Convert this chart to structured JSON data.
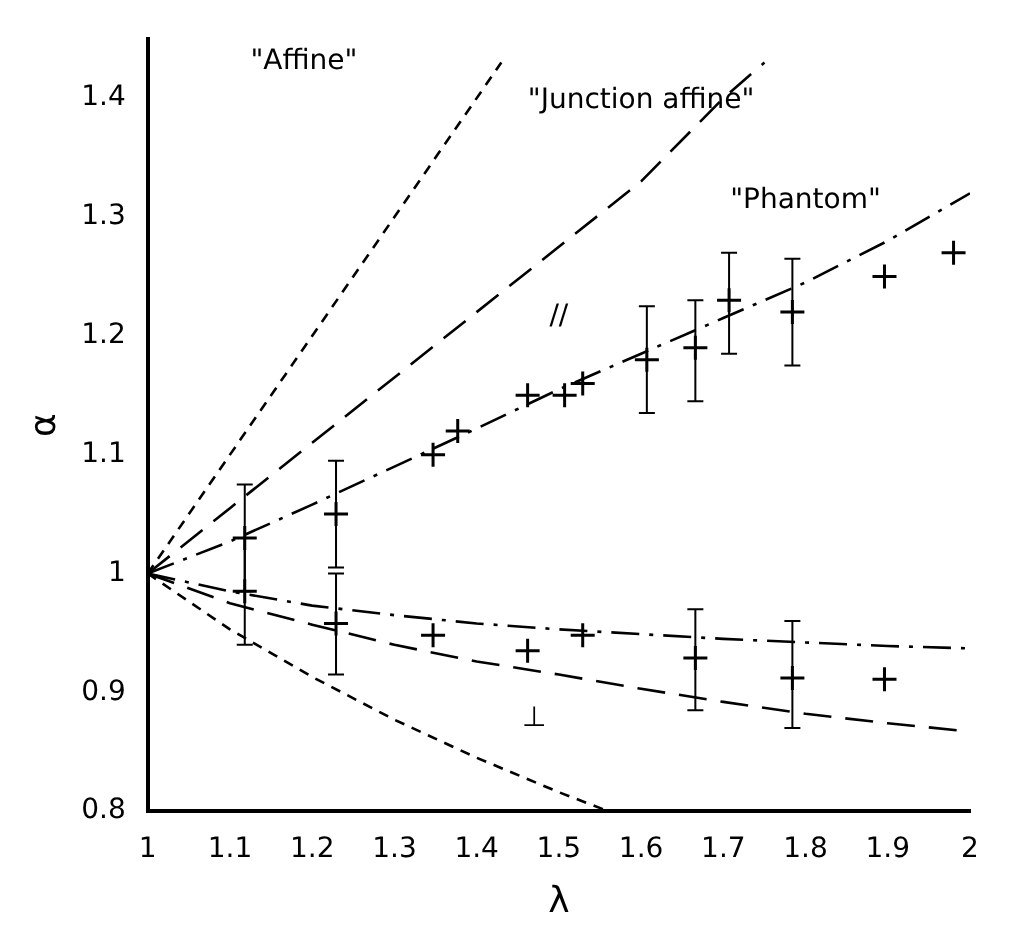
{
  "chart_data": {
    "type": "line",
    "xlabel": "λ",
    "ylabel": "α",
    "xlim": [
      1,
      2
    ],
    "ylim": [
      0.8,
      1.45
    ],
    "xticks": [
      1,
      1.1,
      1.2,
      1.3,
      1.4,
      1.5,
      1.6,
      1.7,
      1.8,
      1.9,
      2
    ],
    "yticks": [
      0.8,
      0.9,
      1,
      1.1,
      1.2,
      1.3,
      1.4
    ],
    "grid": false,
    "legend": false,
    "marker": "none",
    "series": [
      {
        "color": "#000000",
        "line_style": "dotted",
        "x": [
          1,
          1.43
        ],
        "values": [
          1,
          1.43
        ]
      },
      {
        "color": "#000000",
        "line_style": "dotted",
        "x": [
          1,
          1.1,
          1.2,
          1.3,
          1.4,
          1.5,
          1.56
        ],
        "values": [
          1,
          0.953,
          0.913,
          0.877,
          0.845,
          0.816,
          0.8
        ]
      },
      {
        "color": "#000000",
        "line_style": "dashed",
        "x": [
          1,
          1.1,
          1.2,
          1.3,
          1.4,
          1.5,
          1.6,
          1.7,
          1.75
        ],
        "values": [
          1,
          1.055,
          1.11,
          1.165,
          1.22,
          1.275,
          1.33,
          1.4,
          1.43
        ]
      },
      {
        "color": "#000000",
        "line_style": "dashed",
        "x": [
          1,
          1.1,
          1.2,
          1.3,
          1.4,
          1.5,
          1.6,
          1.7,
          1.8,
          1.9,
          2
        ],
        "values": [
          1,
          0.975,
          0.957,
          0.94,
          0.926,
          0.915,
          0.903,
          0.892,
          0.882,
          0.874,
          0.867
        ]
      },
      {
        "color": "#000000",
        "line_style": "dashed",
        "x": [
          1,
          1.1,
          1.2,
          1.3,
          1.4,
          1.5,
          1.6,
          1.7,
          1.8,
          1.9,
          2
        ],
        "values": [
          1,
          1.027,
          1.058,
          1.09,
          1.122,
          1.155,
          1.185,
          1.215,
          1.245,
          1.28,
          1.32
        ]
      },
      {
        "color": "#000000",
        "line_style": "dashed",
        "x": [
          1,
          1.1,
          1.2,
          1.3,
          1.4,
          1.5,
          1.6,
          1.7,
          1.8,
          1.9,
          2
        ],
        "values": [
          1,
          0.985,
          0.973,
          0.965,
          0.958,
          0.953,
          0.949,
          0.945,
          0.942,
          0.939,
          0.937
        ]
      },
      {
        "type": "scatter",
        "color": "#000000",
        "marker": "cross",
        "x": [
          1.118,
          1.229,
          1.347,
          1.377,
          1.462,
          1.507,
          1.529,
          1.607,
          1.666,
          1.707,
          1.784,
          1.896,
          1.98
        ],
        "values": [
          1.03,
          1.05,
          1.1,
          1.12,
          1.15,
          1.15,
          1.16,
          1.18,
          1.19,
          1.23,
          1.22,
          1.25,
          1.27
        ],
        "errors": [
          [
            0.985,
            1.075
          ],
          [
            1.005,
            1.095
          ],
          null,
          null,
          null,
          null,
          null,
          [
            1.135,
            1.225
          ],
          [
            1.145,
            1.23
          ],
          [
            1.185,
            1.27
          ],
          [
            1.175,
            1.265
          ],
          null,
          null
        ]
      },
      {
        "type": "scatter",
        "color": "#000000",
        "marker": "cross",
        "x": [
          1.118,
          1.229,
          1.347,
          1.462,
          1.529,
          1.666,
          1.784,
          1.896
        ],
        "values": [
          0.985,
          0.958,
          0.948,
          0.935,
          0.948,
          0.929,
          0.912,
          0.911
        ],
        "errors": [
          [
            0.94,
            1.03
          ],
          [
            0.915,
            1.0
          ],
          null,
          null,
          null,
          [
            0.885,
            0.97
          ],
          [
            0.87,
            0.96
          ],
          null
        ]
      }
    ],
    "annotations": [
      "\"Affine\"",
      "\"Junction affine\"",
      "\"Phantom\"",
      "//",
      "⊥"
    ]
  }
}
